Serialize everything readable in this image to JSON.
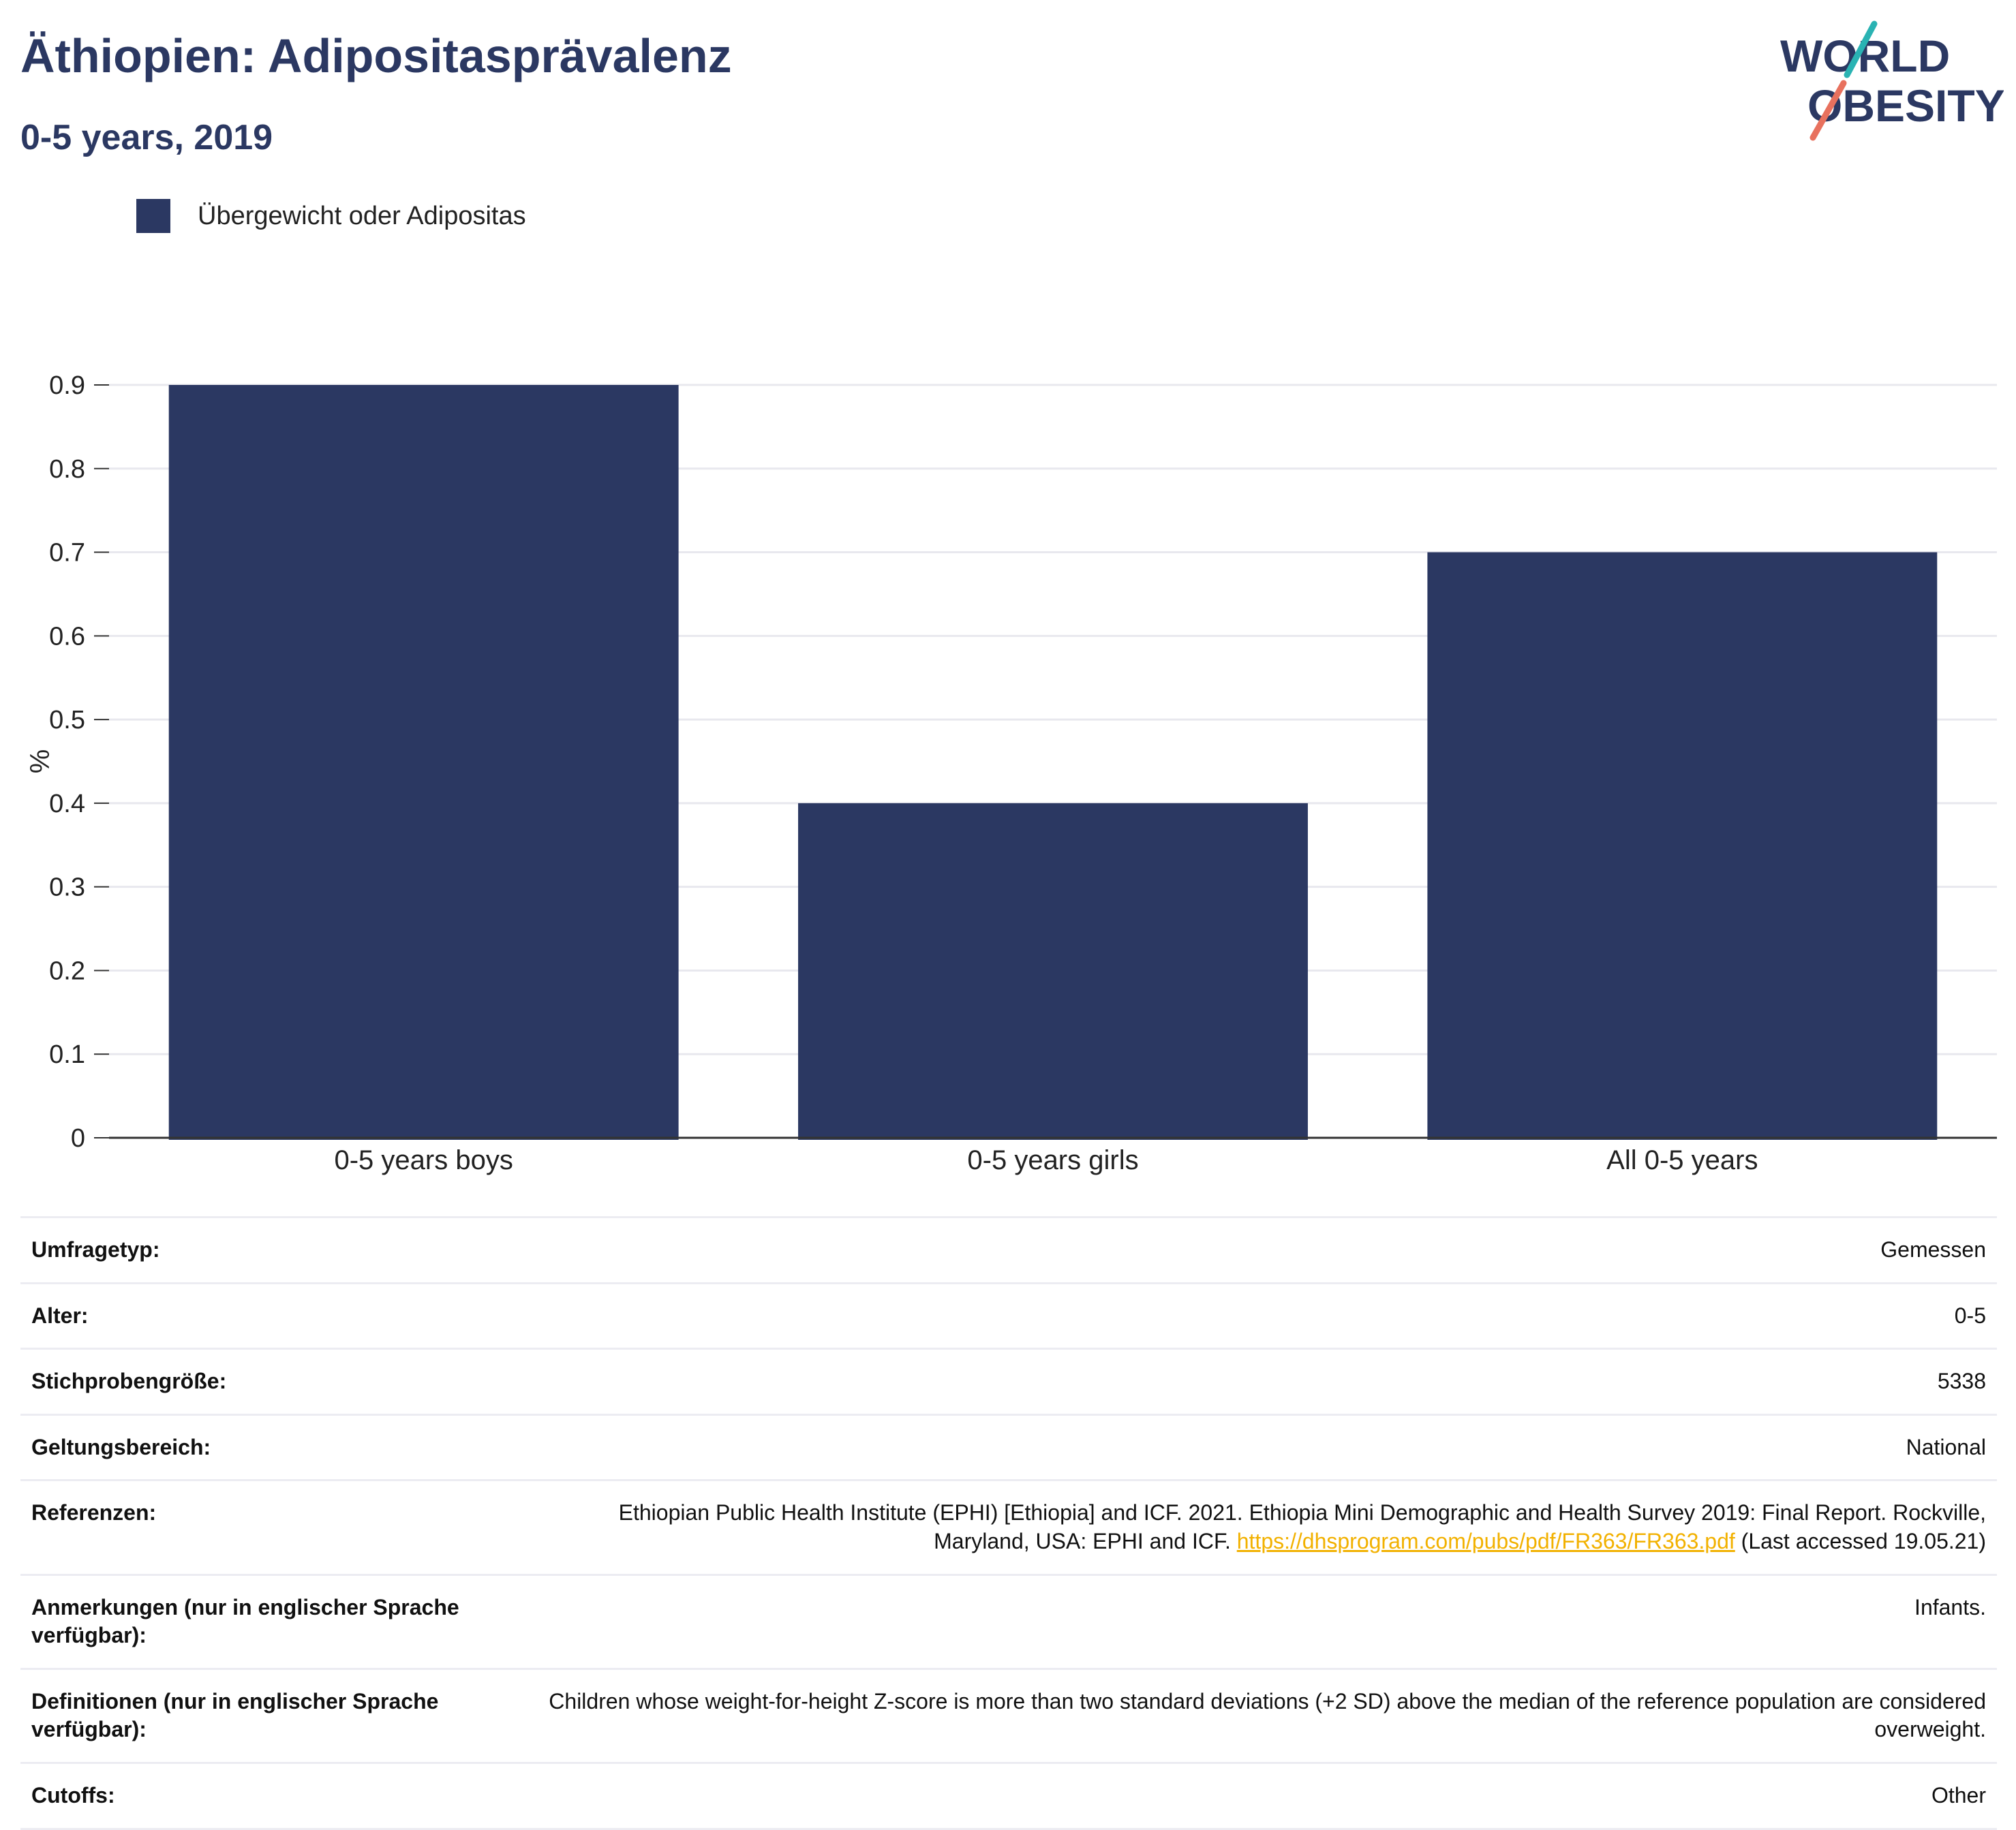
{
  "header": {
    "title": "Äthiopien: Adipositasprävalenz",
    "subtitle": "0-5 years, 2019",
    "logo_text_1": "WORLD",
    "logo_text_2": "OBESITY"
  },
  "legend": {
    "label": "Übergewicht oder Adipositas",
    "color": "#2b3862"
  },
  "chart_data": {
    "type": "bar",
    "categories": [
      "0-5 years boys",
      "0-5 years girls",
      "All 0-5 years"
    ],
    "series": [
      {
        "name": "Übergewicht oder Adipositas",
        "values": [
          0.9,
          0.4,
          0.7
        ],
        "color": "#2b3862"
      }
    ],
    "xlabel": "",
    "ylabel": "%",
    "ylim": [
      0,
      0.9
    ],
    "yticks": [
      "0",
      "0.1",
      "0.2",
      "0.3",
      "0.4",
      "0.5",
      "0.6",
      "0.7",
      "0.8",
      "0.9"
    ],
    "grid": true,
    "legend_position": "top-left"
  },
  "meta": {
    "rows": [
      {
        "key": "Umfragetyp:",
        "value": "Gemessen"
      },
      {
        "key": "Alter:",
        "value": "0-5"
      },
      {
        "key": "Stichprobengröße:",
        "value": "5338"
      },
      {
        "key": "Geltungsbereich:",
        "value": "National"
      },
      {
        "key": "Referenzen:",
        "value": "Ethiopian Public Health Institute (EPHI) [Ethiopia] and ICF. 2021. Ethiopia Mini Demographic and Health Survey 2019: Final Report. Rockville, Maryland, USA: EPHI and ICF."
      },
      {
        "key": "Anmerkungen (nur in englischer Sprache verfügbar):",
        "value": "Infants."
      },
      {
        "key": "Definitionen (nur in englischer Sprache verfügbar):",
        "value": "Children whose weight-for-height Z-score is more than two standard deviations (+2 SD) above the median of the reference population are considered overweight."
      },
      {
        "key": "Cutoffs:",
        "value": "Other"
      }
    ],
    "ref_link": "https://dhsprogram.com/pubs/pdf/FR363/FR363.pdf",
    "ref_suffix": " (Last accessed 19.05.21)"
  }
}
